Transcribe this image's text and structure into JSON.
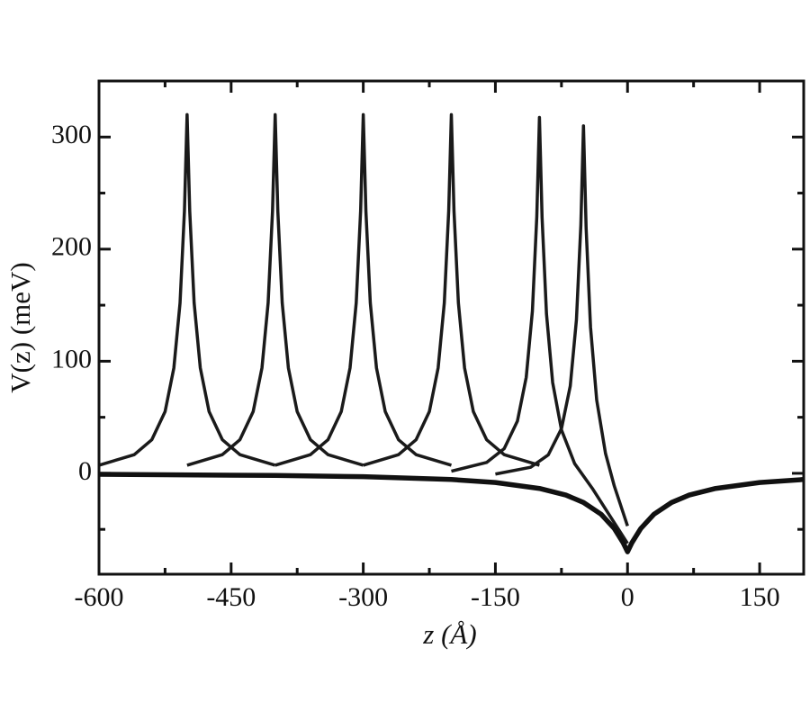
{
  "chart_data": {
    "type": "line",
    "x_label": "z (Å)",
    "y_label": "V(z) (meV)",
    "xlim": [
      -600,
      200
    ],
    "ylim": [
      -90,
      350
    ],
    "xticks": [
      -600,
      -450,
      -300,
      -150,
      0,
      150
    ],
    "yticks": [
      0,
      100,
      200,
      300
    ],
    "xminorticks": [
      -525,
      -375,
      -225,
      -75,
      75
    ],
    "yminorticks": [
      -50,
      50,
      150,
      250
    ],
    "series": [
      {
        "color": "#1a1a1a",
        "line_width": 3.5,
        "x": [
          -600,
          -560,
          -540,
          -525,
          -515,
          -508,
          -503,
          -500,
          -497,
          -492,
          -485,
          -475,
          -460,
          -440,
          -400
        ],
        "values": [
          7.2,
          16.6,
          30,
          55,
          94,
          152,
          234,
          320,
          234,
          152,
          94,
          55,
          30,
          16.6,
          7.2
        ]
      },
      {
        "color": "#1a1a1a",
        "line_width": 3.5,
        "x": [
          -500,
          -460,
          -440,
          -425,
          -415,
          -408,
          -403,
          -400,
          -397,
          -392,
          -385,
          -375,
          -360,
          -340,
          -300
        ],
        "values": [
          7.2,
          16.6,
          30,
          55,
          94,
          152,
          234,
          320,
          234,
          152,
          94,
          55,
          30,
          16.6,
          7.2
        ]
      },
      {
        "color": "#1a1a1a",
        "line_width": 3.5,
        "x": [
          -400,
          -360,
          -340,
          -325,
          -315,
          -308,
          -303,
          -300,
          -297,
          -292,
          -285,
          -275,
          -260,
          -240,
          -200
        ],
        "values": [
          7.2,
          16.6,
          30,
          55,
          94,
          152,
          234,
          320,
          234,
          152,
          94,
          55,
          30,
          16.6,
          7.2
        ]
      },
      {
        "color": "#1a1a1a",
        "line_width": 3.5,
        "x": [
          -300,
          -260,
          -240,
          -225,
          -215,
          -208,
          -203,
          -200,
          -197,
          -192,
          -185,
          -175,
          -160,
          -140,
          -100
        ],
        "values": [
          7.2,
          16.6,
          30,
          55,
          94,
          152,
          234,
          320,
          234,
          152,
          94,
          55,
          30,
          16.6,
          7.2
        ]
      },
      {
        "color": "#1a1a1a",
        "line_width": 3.5,
        "x": [
          -200,
          -160,
          -140,
          -125,
          -115,
          -108,
          -103,
          -100,
          -97,
          -92,
          -85,
          -75,
          -60,
          -40,
          0
        ],
        "values": [
          1.9,
          9.7,
          22,
          46.6,
          85.6,
          144.7,
          229,
          317.5,
          228.1,
          142.3,
          81,
          38.8,
          8.6,
          -13.4,
          -62.6
        ]
      },
      {
        "color": "#1a1a1a",
        "line_width": 3.5,
        "x": [
          -150,
          -110,
          -90,
          -75,
          -65,
          -58,
          -53,
          -50,
          -47,
          -42,
          -35,
          -25,
          -15,
          -5,
          0
        ],
        "values": [
          -0.7,
          5.4,
          16.4,
          39.8,
          77.9,
          137,
          221.2,
          310,
          218.8,
          130.4,
          65.4,
          17.8,
          -11.4,
          -35.1,
          -47
        ]
      },
      {
        "color": "#111111",
        "line_width": 5.5,
        "x": [
          -600,
          -400,
          -300,
          -200,
          -150,
          -100,
          -70,
          -50,
          -30,
          -15,
          -5,
          0,
          5,
          15,
          30,
          50,
          70,
          100,
          150,
          200
        ],
        "values": [
          -0.9,
          -1.9,
          -3.0,
          -5.5,
          -8.2,
          -13.5,
          -19.4,
          -26.0,
          -36.5,
          -49.3,
          -61.9,
          -70,
          -61.9,
          -49.3,
          -36.5,
          -26.0,
          -19.4,
          -13.5,
          -8.2,
          -5.5
        ]
      }
    ]
  }
}
